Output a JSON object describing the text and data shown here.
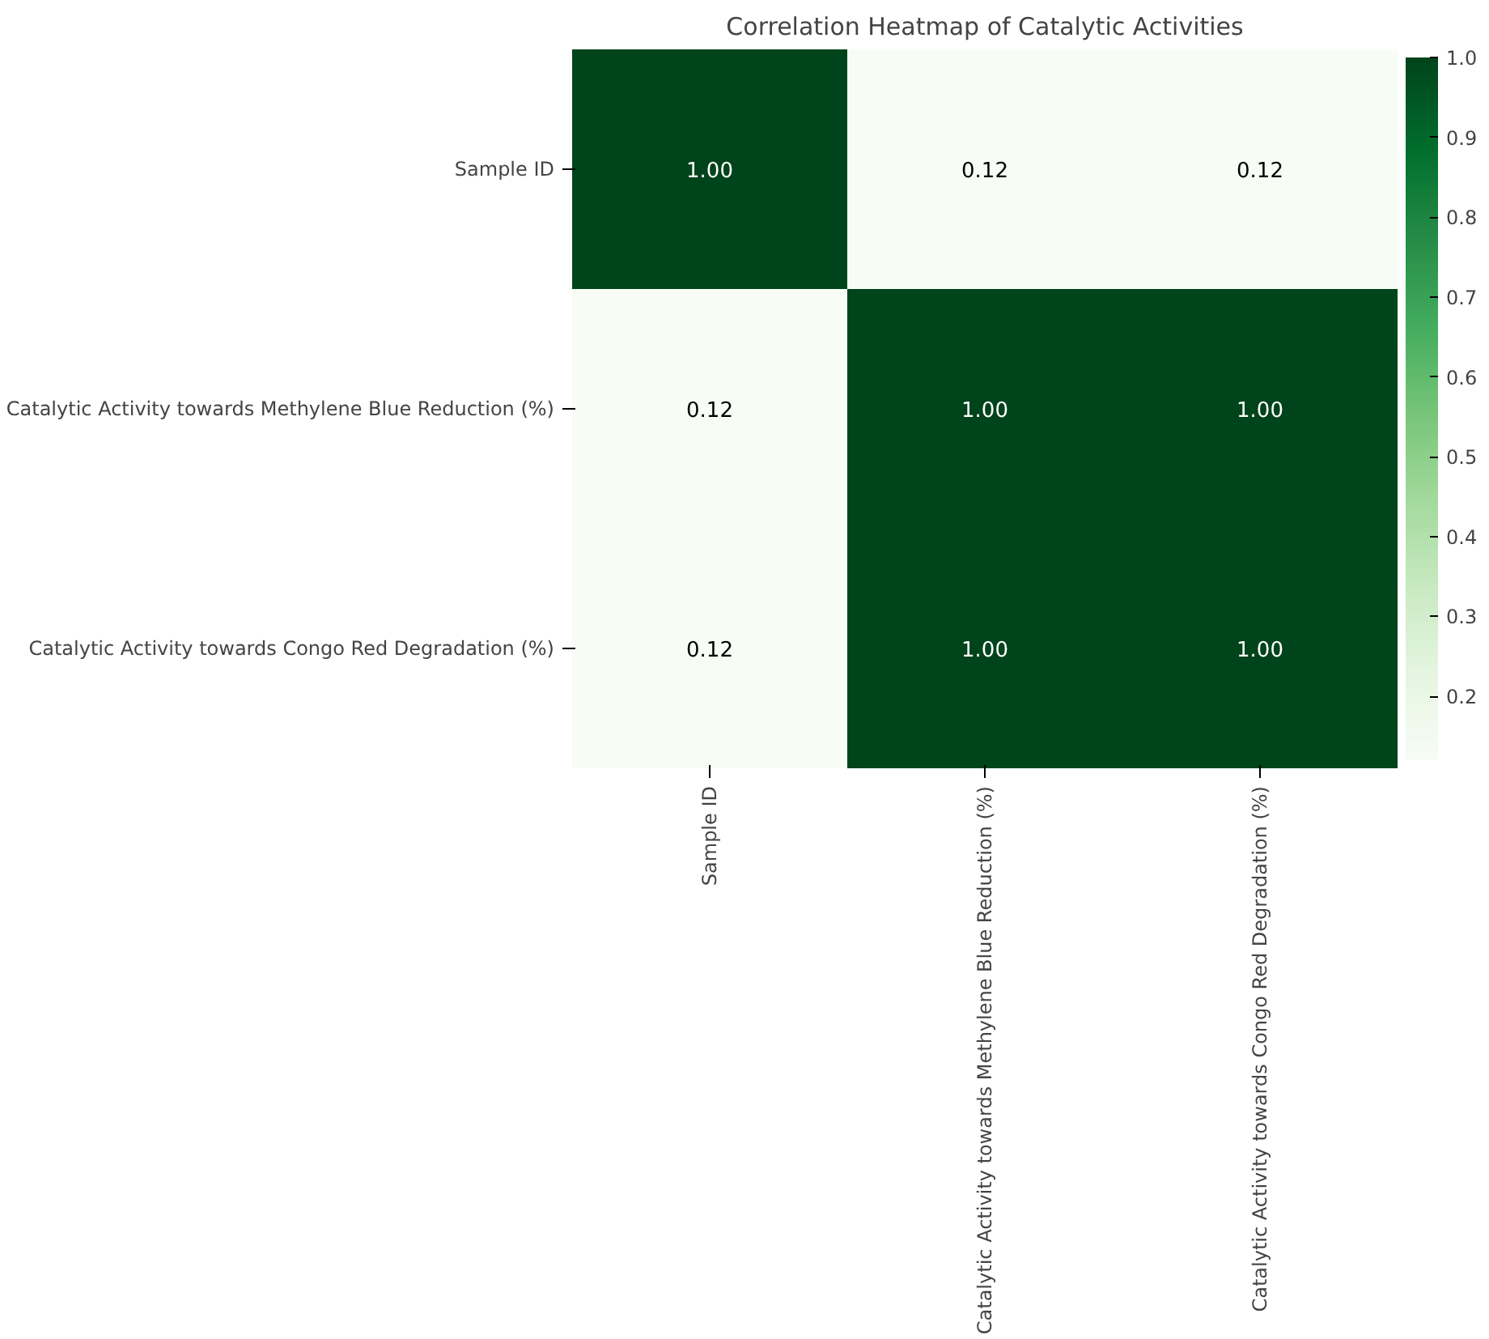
{
  "chart_data": {
    "type": "heatmap",
    "title": "Correlation Heatmap of Catalytic Activities",
    "categories": [
      "Sample ID",
      "Catalytic Activity towards Methylene Blue Reduction (%)",
      "Catalytic Activity towards Congo Red Degradation (%)"
    ],
    "y_categories": [
      "Sample ID",
      "Catalytic Activity towards Methylene Blue Reduction (%)",
      "Catalytic Activity towards Congo Red Degradation (%)"
    ],
    "cells": [
      [
        1.0,
        0.12,
        0.12
      ],
      [
        0.12,
        1.0,
        1.0
      ],
      [
        0.12,
        1.0,
        1.0
      ]
    ],
    "cell_labels": [
      [
        "1.00",
        "0.12",
        "0.12"
      ],
      [
        "0.12",
        "1.00",
        "1.00"
      ],
      [
        "0.12",
        "1.00",
        "1.00"
      ]
    ],
    "clim": [
      0.12,
      1.0
    ],
    "cticks": [
      0.2,
      0.3,
      0.4,
      0.5,
      0.6,
      0.7,
      0.8,
      0.9,
      {
        "value": 1.0,
        "label": "1.0"
      }
    ]
  }
}
